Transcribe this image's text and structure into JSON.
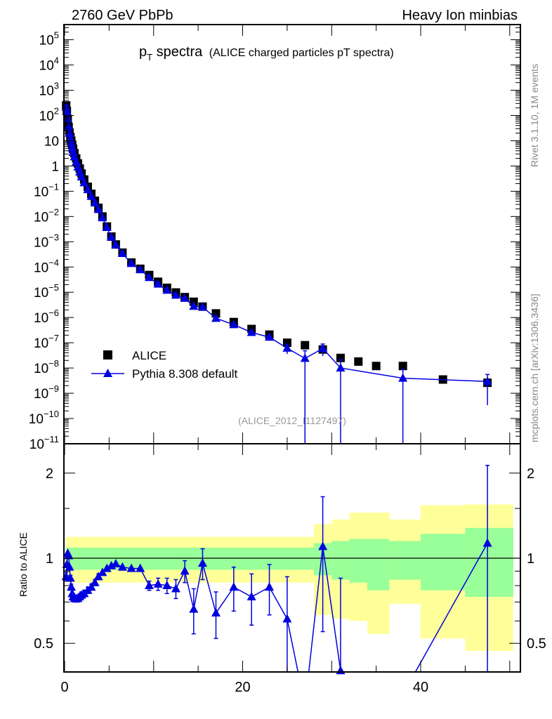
{
  "header": {
    "left": "2760 GeV PbPb",
    "right": "Heavy Ion minbias"
  },
  "side_labels": {
    "top": "Rivet 3.1.10,  1M events",
    "bottom": "mcplots.cern.ch [arXiv:1306.3436]"
  },
  "chart_data": [
    {
      "type": "scatter",
      "title_main": "p",
      "title_sub": "T",
      "title_rest": " spectra",
      "subtitle": "(ALICE charged particles pT spectra)",
      "analysis_tag": "(ALICE_2012_I1127497)",
      "yscale": "log",
      "xlim": [
        0,
        51.2
      ],
      "ylim_log10": [
        -11,
        5.6
      ],
      "ytick_exponents": [
        -11,
        -10,
        -9,
        -8,
        -7,
        -6,
        -5,
        -4,
        -3,
        -2,
        -1,
        0,
        1,
        2,
        3,
        4,
        5
      ],
      "legend": {
        "placement": "middle-left",
        "entries": [
          "ALICE",
          "Pythia 8.308 default"
        ]
      },
      "x": [
        0.175,
        0.25,
        0.35,
        0.45,
        0.55,
        0.65,
        0.75,
        0.85,
        0.95,
        1.1,
        1.3,
        1.5,
        1.7,
        1.9,
        2.2,
        2.6,
        3.0,
        3.4,
        3.8,
        4.25,
        4.75,
        5.25,
        5.75,
        6.5,
        7.5,
        8.5,
        9.5,
        10.5,
        11.5,
        12.5,
        13.5,
        14.5,
        15.5,
        17,
        19,
        21,
        23,
        25,
        27,
        29,
        31,
        33,
        35,
        38,
        42.5,
        47.5
      ],
      "series": [
        {
          "name": "ALICE",
          "color": "#000000",
          "marker": "square",
          "values": [
            250,
            150,
            72,
            35,
            21,
            14,
            10,
            6.9,
            4.8,
            3.2,
            2.0,
            1.26,
            0.79,
            0.5,
            0.29,
            0.15,
            0.079,
            0.042,
            0.022,
            0.01,
            0.004,
            0.0016,
            0.00078,
            0.00037,
            0.00015,
            8.5e-05,
            4.8e-05,
            2.6e-05,
            1.5e-05,
            9.8e-06,
            6.4e-06,
            4.2e-06,
            2.7e-06,
            1.45e-06,
            6.6e-07,
            3.5e-07,
            2.1e-07,
            1e-07,
            8e-08,
            5.4e-08,
            2.5e-08,
            1.8e-08,
            1.2e-08,
            1.2e-08,
            3.5e-09,
            2.6e-09
          ]
        },
        {
          "name": "Pythia 8.308 default",
          "color": "#0000e0",
          "marker": "triangle",
          "values_from": "ALICE x ratio"
        }
      ]
    },
    {
      "type": "line",
      "ylabel": "Ratio to ALICE",
      "yscale": "log",
      "ylim": [
        0.396,
        2.54
      ],
      "yticks": [
        "2",
        "1",
        "0.5"
      ],
      "ytick_values": [
        2,
        1,
        0.5
      ],
      "xticks": [
        "0",
        "20",
        "40"
      ],
      "xtick_values": [
        0,
        20,
        40
      ],
      "ratio": [
        0.86,
        0.95,
        1.04,
        1.02,
        0.93,
        0.85,
        0.79,
        0.75,
        0.73,
        0.72,
        0.72,
        0.72,
        0.73,
        0.74,
        0.75,
        0.77,
        0.79,
        0.82,
        0.86,
        0.89,
        0.92,
        0.94,
        0.955,
        0.93,
        0.92,
        0.92,
        0.8,
        0.81,
        0.8,
        0.78,
        0.9,
        0.66,
        0.96,
        0.64,
        0.79,
        0.73,
        0.79,
        0.61,
        0.3,
        1.1,
        0.4,
        null,
        null,
        0.33,
        null,
        1.13
      ],
      "ratio_err": [
        0.03,
        0.02,
        0.02,
        0.02,
        0.02,
        0.02,
        0.02,
        0.02,
        0.02,
        0.02,
        0.02,
        0.02,
        0.02,
        0.02,
        0.02,
        0.02,
        0.02,
        0.02,
        0.02,
        0.02,
        0.02,
        0.02,
        0.02,
        0.02,
        0.02,
        0.02,
        0.03,
        0.04,
        0.05,
        0.06,
        0.08,
        0.12,
        0.12,
        0.12,
        0.14,
        0.15,
        0.16,
        0.25,
        0.3,
        0.55,
        0.45,
        null,
        null,
        0.4,
        null,
        1.0
      ],
      "bands": [
        {
          "x": [
            0.15,
            28
          ],
          "yellow": [
            0.82,
            1.19
          ],
          "green": [
            0.91,
            1.09
          ]
        },
        {
          "x": [
            28,
            30
          ],
          "yellow": [
            0.63,
            1.32
          ],
          "green": [
            0.87,
            1.13
          ]
        },
        {
          "x": [
            30,
            32
          ],
          "yellow": [
            0.61,
            1.37
          ],
          "green": [
            0.84,
            1.15
          ]
        },
        {
          "x": [
            32,
            34
          ],
          "yellow": [
            0.6,
            1.45
          ],
          "green": [
            0.82,
            1.17
          ]
        },
        {
          "x": [
            34,
            36.5
          ],
          "yellow": [
            0.54,
            1.45
          ],
          "green": [
            0.77,
            1.17
          ]
        },
        {
          "x": [
            36.5,
            40
          ],
          "yellow": [
            0.69,
            1.37
          ],
          "green": [
            0.84,
            1.15
          ]
        },
        {
          "x": [
            40,
            45
          ],
          "yellow": [
            0.52,
            1.54
          ],
          "green": [
            0.77,
            1.22
          ]
        },
        {
          "x": [
            45,
            50.4
          ],
          "yellow": [
            0.47,
            1.55
          ],
          "green": [
            0.73,
            1.28
          ]
        }
      ],
      "colors": {
        "yellow": "#ffff99",
        "green": "#99ff99"
      }
    }
  ]
}
